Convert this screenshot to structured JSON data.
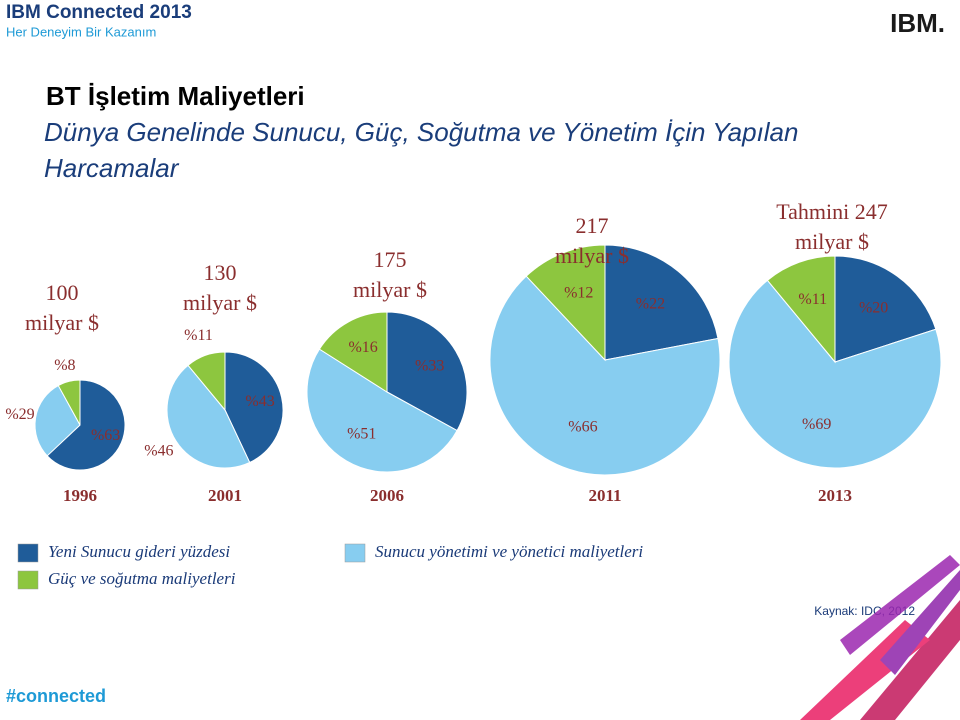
{
  "header": {
    "brand": "IBM Connected 2013",
    "tagline": "Her Deneyim Bir Kazanım",
    "logo": "IBM."
  },
  "slide": {
    "title": "BT İşletim Maliyetleri",
    "subtitle": "Dünya Genelinde Sunucu, Güç, Soğutma ve Yönetim İçin Yapılan Harcamalar",
    "source": "Kaynak: IDC, 2012",
    "hashtag": "#connected"
  },
  "legend": [
    {
      "name": "Yeni Sunucu gideri yüzdesi",
      "color": "#1f5c99"
    },
    {
      "name": "Güç ve soğutma maliyetleri",
      "color": "#8dc63f"
    },
    {
      "name": "Sunucu yönetimi ve yönetici maliyetleri",
      "color": "#87cdf0"
    }
  ],
  "chart_data": [
    {
      "type": "pie",
      "title": [
        "100",
        "milyar $"
      ],
      "year": "1996",
      "values": [
        63,
        8,
        29
      ],
      "value_labels": [
        "%63",
        "%8",
        "%29"
      ]
    },
    {
      "type": "pie",
      "title": [
        "130",
        "milyar $"
      ],
      "year": "2001",
      "values": [
        43,
        11,
        46
      ],
      "value_labels": [
        "%43",
        "%11",
        "%46"
      ]
    },
    {
      "type": "pie",
      "title": [
        "175",
        "milyar $"
      ],
      "year": "2006",
      "values": [
        33,
        16,
        51
      ],
      "value_labels": [
        "%33",
        "%16",
        "%51"
      ]
    },
    {
      "type": "pie",
      "title": [
        "217",
        "milyar $"
      ],
      "year": "2011",
      "values": [
        22,
        12,
        66
      ],
      "value_labels": [
        "%22",
        "%12",
        "%66"
      ]
    },
    {
      "type": "pie",
      "title": [
        "Tahmini 247",
        "milyar $"
      ],
      "year": "2013",
      "values": [
        20,
        11,
        69
      ],
      "value_labels": [
        "%20",
        "%11",
        "%69"
      ]
    }
  ]
}
